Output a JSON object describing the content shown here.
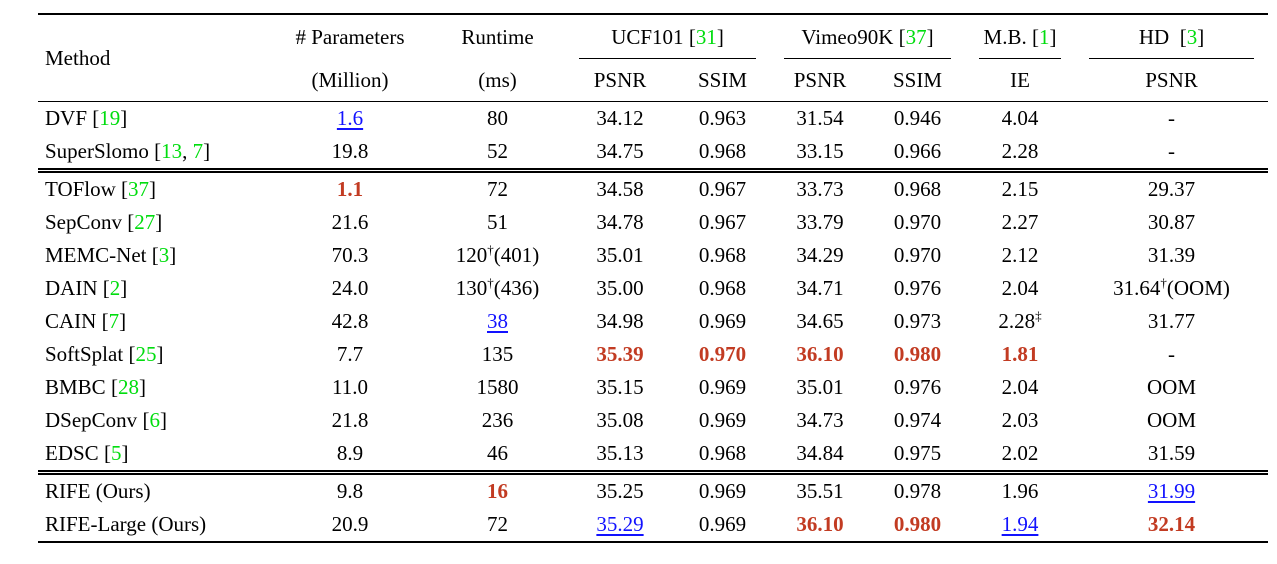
{
  "colors": {
    "citation_green": "#00dd0e",
    "best_red": "#c23b22",
    "second_blue": "#1212ff",
    "rule_black": "#000000",
    "background": "#ffffff"
  },
  "table": {
    "method_header": "Method",
    "simple_cols": [
      {
        "line1": "# Parameters",
        "line2": "(Million)"
      },
      {
        "line1": "Runtime",
        "line2": "(ms)"
      }
    ],
    "groups": [
      {
        "name": "UCF101",
        "cite": "31",
        "subs": [
          "PSNR",
          "SSIM"
        ]
      },
      {
        "name": "Vimeo90K",
        "cite": "37",
        "subs": [
          "PSNR",
          "SSIM"
        ]
      },
      {
        "name": "M.B.",
        "cite": "1",
        "subs": [
          "IE"
        ]
      },
      {
        "name": "HD",
        "cite": "3",
        "subs": [
          "PSNR"
        ]
      }
    ],
    "sections": [
      {
        "rows": [
          {
            "method": "DVF",
            "cite": [
              "19"
            ],
            "cells": [
              {
                "t": "1.6",
                "s": "second"
              },
              {
                "t": "80"
              },
              {
                "t": "34.12"
              },
              {
                "t": "0.963"
              },
              {
                "t": "31.54"
              },
              {
                "t": "0.946"
              },
              {
                "t": "4.04"
              },
              {
                "t": "-"
              }
            ]
          },
          {
            "method": "SuperSlomo",
            "cite": [
              "13",
              "7"
            ],
            "cells": [
              {
                "t": "19.8"
              },
              {
                "t": "52"
              },
              {
                "t": "34.75"
              },
              {
                "t": "0.968"
              },
              {
                "t": "33.15"
              },
              {
                "t": "0.966"
              },
              {
                "t": "2.28"
              },
              {
                "t": "-"
              }
            ]
          }
        ]
      },
      {
        "rows": [
          {
            "method": "TOFlow",
            "cite": [
              "37"
            ],
            "cells": [
              {
                "t": "1.1",
                "s": "best"
              },
              {
                "t": "72"
              },
              {
                "t": "34.58"
              },
              {
                "t": "0.967"
              },
              {
                "t": "33.73"
              },
              {
                "t": "0.968"
              },
              {
                "t": "2.15"
              },
              {
                "t": "29.37"
              }
            ]
          },
          {
            "method": "SepConv",
            "cite": [
              "27"
            ],
            "cells": [
              {
                "t": "21.6"
              },
              {
                "t": "51"
              },
              {
                "t": "34.78"
              },
              {
                "t": "0.967"
              },
              {
                "t": "33.79"
              },
              {
                "t": "0.970"
              },
              {
                "t": "2.27"
              },
              {
                "t": "30.87"
              }
            ]
          },
          {
            "method": "MEMC-Net",
            "cite": [
              "3"
            ],
            "cells": [
              {
                "t": "70.3"
              },
              {
                "t": "120†(401)"
              },
              {
                "t": "35.01"
              },
              {
                "t": "0.968"
              },
              {
                "t": "34.29"
              },
              {
                "t": "0.970"
              },
              {
                "t": "2.12"
              },
              {
                "t": "31.39"
              }
            ]
          },
          {
            "method": "DAIN",
            "cite": [
              "2"
            ],
            "cells": [
              {
                "t": "24.0"
              },
              {
                "t": "130†(436)"
              },
              {
                "t": "35.00"
              },
              {
                "t": "0.968"
              },
              {
                "t": "34.71"
              },
              {
                "t": "0.976"
              },
              {
                "t": "2.04"
              },
              {
                "t": "31.64†(OOM)"
              }
            ]
          },
          {
            "method": "CAIN",
            "cite": [
              "7"
            ],
            "cells": [
              {
                "t": "42.8"
              },
              {
                "t": "38",
                "s": "second"
              },
              {
                "t": "34.98"
              },
              {
                "t": "0.969"
              },
              {
                "t": "34.65"
              },
              {
                "t": "0.973"
              },
              {
                "t": "2.28‡"
              },
              {
                "t": "31.77"
              }
            ]
          },
          {
            "method": "SoftSplat",
            "cite": [
              "25"
            ],
            "cells": [
              {
                "t": "7.7"
              },
              {
                "t": "135"
              },
              {
                "t": "35.39",
                "s": "best"
              },
              {
                "t": "0.970",
                "s": "best"
              },
              {
                "t": "36.10",
                "s": "best"
              },
              {
                "t": "0.980",
                "s": "best"
              },
              {
                "t": "1.81",
                "s": "best"
              },
              {
                "t": "-"
              }
            ]
          },
          {
            "method": "BMBC",
            "cite": [
              "28"
            ],
            "cells": [
              {
                "t": "11.0"
              },
              {
                "t": "1580"
              },
              {
                "t": "35.15"
              },
              {
                "t": "0.969"
              },
              {
                "t": "35.01"
              },
              {
                "t": "0.976"
              },
              {
                "t": "2.04"
              },
              {
                "t": "OOM"
              }
            ]
          },
          {
            "method": "DSepConv",
            "cite": [
              "6"
            ],
            "cells": [
              {
                "t": "21.8"
              },
              {
                "t": "236"
              },
              {
                "t": "35.08"
              },
              {
                "t": "0.969"
              },
              {
                "t": "34.73"
              },
              {
                "t": "0.974"
              },
              {
                "t": "2.03"
              },
              {
                "t": "OOM"
              }
            ]
          },
          {
            "method": "EDSC",
            "cite": [
              "5"
            ],
            "cells": [
              {
                "t": "8.9"
              },
              {
                "t": "46"
              },
              {
                "t": "35.13"
              },
              {
                "t": "0.968"
              },
              {
                "t": "34.84"
              },
              {
                "t": "0.975"
              },
              {
                "t": "2.02"
              },
              {
                "t": "31.59"
              }
            ]
          }
        ]
      },
      {
        "rows": [
          {
            "method": "RIFE (Ours)",
            "cite": [],
            "cells": [
              {
                "t": "9.8"
              },
              {
                "t": "16",
                "s": "best"
              },
              {
                "t": "35.25"
              },
              {
                "t": "0.969"
              },
              {
                "t": "35.51"
              },
              {
                "t": "0.978"
              },
              {
                "t": "1.96"
              },
              {
                "t": "31.99",
                "s": "second"
              }
            ]
          },
          {
            "method": "RIFE-Large (Ours)",
            "cite": [],
            "cells": [
              {
                "t": "20.9"
              },
              {
                "t": "72"
              },
              {
                "t": "35.29",
                "s": "second"
              },
              {
                "t": "0.969"
              },
              {
                "t": "36.10",
                "s": "best"
              },
              {
                "t": "0.980",
                "s": "best"
              },
              {
                "t": "1.94",
                "s": "second"
              },
              {
                "t": "32.14",
                "s": "best"
              }
            ]
          }
        ]
      }
    ]
  }
}
